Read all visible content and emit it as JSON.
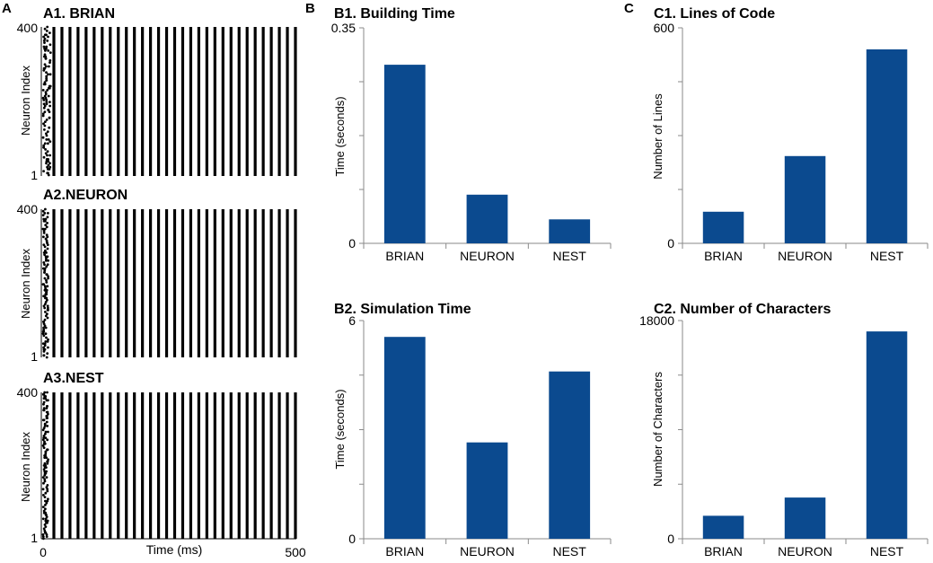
{
  "panels": {
    "a": "A",
    "b": "B",
    "c": "C"
  },
  "chart_data": [
    {
      "id": "A1",
      "type": "scatter",
      "title": "A1. BRIAN",
      "ylabel": "Neuron Index",
      "xlim": [
        0,
        500
      ],
      "ylim": [
        1,
        400
      ],
      "ytick_labels": [
        "400",
        "1"
      ],
      "raster_columns": 31,
      "initial_scatter_ms": 15
    },
    {
      "id": "A2",
      "type": "scatter",
      "title": "A2.NEURON",
      "ylabel": "Neuron Index",
      "xlim": [
        0,
        500
      ],
      "ylim": [
        1,
        400
      ],
      "ytick_labels": [
        "400",
        "1"
      ],
      "raster_columns": 31,
      "initial_scatter_ms": 10
    },
    {
      "id": "A3",
      "type": "scatter",
      "title": "A3.NEST",
      "ylabel": "Neuron Index",
      "xlabel": "Time (ms)",
      "xlim": [
        0,
        500
      ],
      "ylim": [
        1,
        400
      ],
      "ytick_labels": [
        "400",
        "1"
      ],
      "xtick_labels": [
        "0",
        "500"
      ],
      "raster_columns": 31,
      "initial_scatter_ms": 10
    },
    {
      "id": "B1",
      "type": "bar",
      "title": "B1. Building Time",
      "ylabel": "Time (seconds)",
      "ylim": [
        0,
        0.35
      ],
      "yticks": [
        0,
        0.35
      ],
      "yticks_minor": [
        0.0875,
        0.175,
        0.2625
      ],
      "categories": [
        "BRIAN",
        "NEURON",
        "NEST"
      ],
      "values": [
        0.29,
        0.079,
        0.039
      ],
      "bar_color": "#0b4a8f"
    },
    {
      "id": "B2",
      "type": "bar",
      "title": "B2. Simulation Time",
      "ylabel": "Time (seconds)",
      "ylim": [
        0,
        6
      ],
      "yticks": [
        0,
        6
      ],
      "yticks_minor": [
        1.5,
        3,
        4.5
      ],
      "categories": [
        "BRIAN",
        "NEURON",
        "NEST"
      ],
      "values": [
        5.55,
        2.65,
        4.6
      ],
      "bar_color": "#0b4a8f"
    },
    {
      "id": "C1",
      "type": "bar",
      "title": "C1. Lines of Code",
      "ylabel": "Number of Lines",
      "ylim": [
        0,
        600
      ],
      "yticks": [
        0,
        600
      ],
      "yticks_minor": [
        150,
        300,
        450
      ],
      "categories": [
        "BRIAN",
        "NEURON",
        "NEST"
      ],
      "values": [
        88,
        243,
        540
      ],
      "bar_color": "#0b4a8f"
    },
    {
      "id": "C2",
      "type": "bar",
      "title": "C2. Number of Characters",
      "ylabel": "Number of Characters",
      "ylim": [
        0,
        18000
      ],
      "yticks": [
        0,
        18000
      ],
      "yticks_minor": [
        4500,
        9000,
        13500
      ],
      "categories": [
        "BRIAN",
        "NEURON",
        "NEST"
      ],
      "values": [
        1900,
        3400,
        17100
      ],
      "bar_color": "#0b4a8f"
    }
  ]
}
